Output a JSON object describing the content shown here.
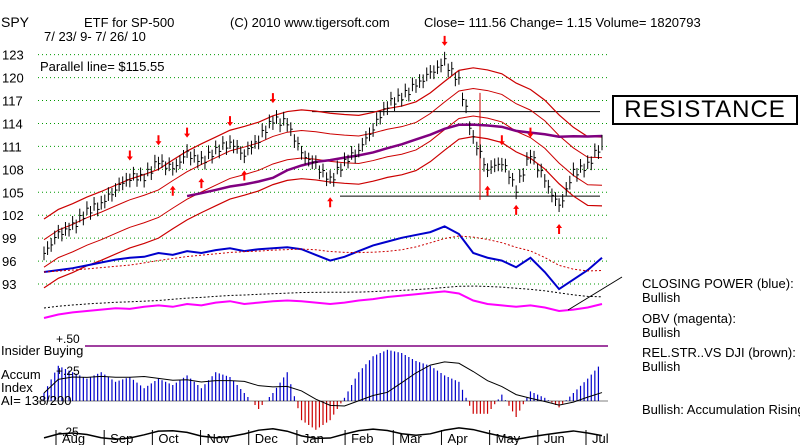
{
  "header": {
    "ticker": "SPY",
    "etf_label": "ETF for SP-500",
    "copyright": "(C) 2010 www.tigersoft.com",
    "quote": "Close=  111.56  Change= 1.15 Volume= 1820793",
    "date_range": "7/ 23/ 9- 7/ 26/ 10",
    "parallel_line": "Parallel line= $115.55"
  },
  "callouts": {
    "resistance": "RESISTANCE"
  },
  "indicators": {
    "closing_power": "CLOSING POWER (blue):",
    "closing_power_state": "Bullish",
    "obv": "OBV (magenta):",
    "obv_state": "Bullish",
    "relstr": "REL.STR..VS DJI (brown):",
    "relstr_state": "Bullish",
    "accum_note": "Bullish: Accumulation Rising"
  },
  "lower_panel": {
    "insider_buying": "Insider Buying",
    "plus50": "+.50",
    "plus25": "+.25",
    "minus25": "-.25",
    "accum_label": "Accum",
    "index_label": "Index",
    "ai_label": "AI= 138/200"
  },
  "colors": {
    "price_bars": "#000000",
    "bands": "#cc0000",
    "moving_average": "#800080",
    "closing_power": "#0000cc",
    "obv": "#ff00ff",
    "accum_positive": "#0000cc",
    "accum_negative": "#cc0000",
    "grid": "#009900",
    "signal_arrows": "#ff0000"
  },
  "chart_data": {
    "type": "line",
    "title": "ETF for SP-500",
    "y_ticks": [
      123,
      120,
      117,
      114,
      111,
      108,
      105,
      102,
      99,
      96,
      93
    ],
    "x_ticks": [
      "Aug",
      "Sep",
      "Oct",
      "Nov",
      "Dec",
      "Jan",
      "Feb",
      "Mar",
      "Apr",
      "May",
      "Jun",
      "Jul"
    ],
    "ylim": [
      93,
      124
    ],
    "grid": true,
    "series": [
      {
        "values": [
          97,
          99.5,
          100.5,
          102.5,
          103.5,
          105.5,
          107,
          107,
          109,
          108,
          110,
          109,
          110.5,
          111.5,
          110,
          112,
          114.5,
          114,
          110,
          108.5,
          106.5,
          109,
          110.5,
          113.5,
          116.5,
          117.5,
          119,
          120.5,
          122,
          119.5,
          112,
          108,
          109,
          105.5,
          110,
          106.5,
          103,
          107.5,
          108.5,
          111.5
        ]
      }
    ],
    "closing_power": [
      0.4,
      0.42,
      0.44,
      0.47,
      0.5,
      0.53,
      0.55,
      0.56,
      0.6,
      0.58,
      0.62,
      0.6,
      0.63,
      0.65,
      0.62,
      0.64,
      0.65,
      0.66,
      0.64,
      0.58,
      0.52,
      0.56,
      0.62,
      0.68,
      0.72,
      0.76,
      0.79,
      0.82,
      0.88,
      0.8,
      0.6,
      0.55,
      0.52,
      0.45,
      0.55,
      0.4,
      0.22,
      0.32,
      0.42,
      0.55
    ],
    "obv": [
      0.2,
      0.25,
      0.28,
      0.3,
      0.32,
      0.34,
      0.33,
      0.36,
      0.38,
      0.36,
      0.4,
      0.38,
      0.42,
      0.44,
      0.4,
      0.42,
      0.44,
      0.45,
      0.44,
      0.42,
      0.4,
      0.42,
      0.45,
      0.47,
      0.5,
      0.52,
      0.54,
      0.56,
      0.58,
      0.55,
      0.45,
      0.4,
      0.38,
      0.36,
      0.38,
      0.35,
      0.3,
      0.32,
      0.35,
      0.4
    ],
    "accum_index": [
      0.05,
      0.22,
      0.18,
      0.14,
      0.18,
      0.12,
      0.15,
      0.08,
      0.14,
      0.1,
      0.16,
      0.08,
      0.18,
      0.15,
      0.05,
      -0.05,
      0.05,
      0.18,
      -0.12,
      -0.18,
      -0.12,
      0.02,
      0.18,
      0.28,
      0.32,
      0.3,
      0.25,
      0.22,
      0.16,
      0.12,
      -0.08,
      -0.08,
      0.04,
      -0.1,
      0.06,
      0.02,
      -0.04,
      0.05,
      0.14,
      0.24
    ],
    "resistance_level": 115.55,
    "support_level": 104.5
  }
}
